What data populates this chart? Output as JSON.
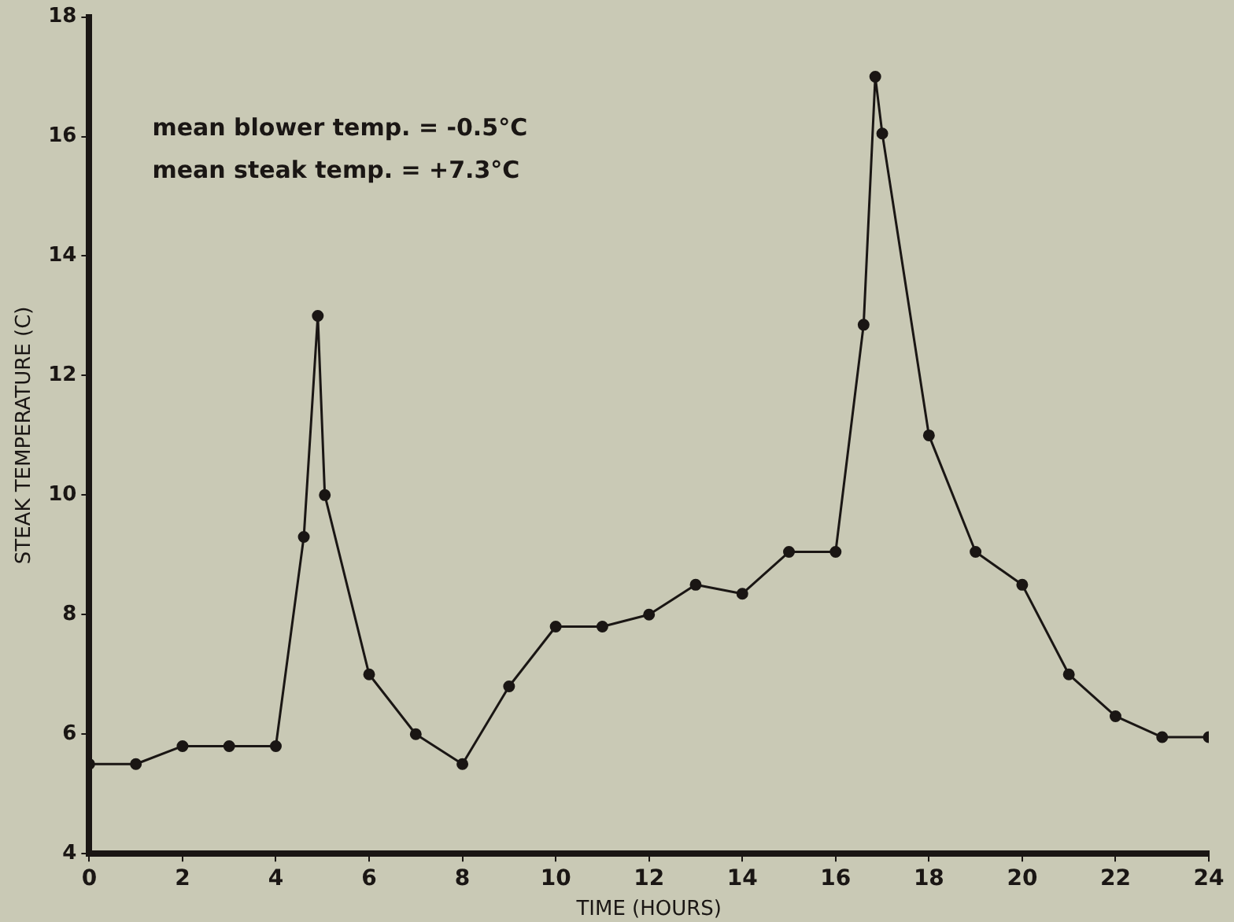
{
  "chart_data": {
    "type": "line",
    "xlabel": "TIME (HOURS)",
    "ylabel": "STEAK TEMPERATURE (C)",
    "annotations": [
      "mean blower temp. = -0.5°C",
      "mean steak temp. = +7.3°C"
    ],
    "series": [
      {
        "color": "#1a1614",
        "x": [
          0,
          1,
          2,
          3,
          4,
          4.6,
          4.9,
          5.05,
          6,
          7,
          8,
          9,
          10,
          11,
          12,
          13,
          14,
          15,
          16,
          16.6,
          16.85,
          17,
          18,
          19,
          20,
          21,
          22,
          23,
          24
        ],
        "values": [
          5.5,
          5.5,
          5.8,
          5.8,
          5.8,
          9.3,
          13.0,
          10.0,
          7.0,
          6.0,
          5.5,
          6.8,
          7.8,
          7.8,
          8.0,
          8.5,
          8.35,
          9.05,
          9.05,
          12.85,
          17.0,
          16.05,
          11.0,
          9.05,
          8.5,
          7.0,
          6.3,
          5.95,
          5.95
        ]
      }
    ],
    "xlim": [
      0,
      24
    ],
    "xticks": [
      0,
      2,
      4,
      6,
      8,
      10,
      12,
      14,
      16,
      18,
      20,
      22,
      24
    ],
    "ylim": [
      4,
      18
    ],
    "yticks": [
      4,
      6,
      8,
      10,
      12,
      14,
      16,
      18
    ],
    "grid": false,
    "legend": false,
    "marker": "circle",
    "line_style": "solid"
  }
}
